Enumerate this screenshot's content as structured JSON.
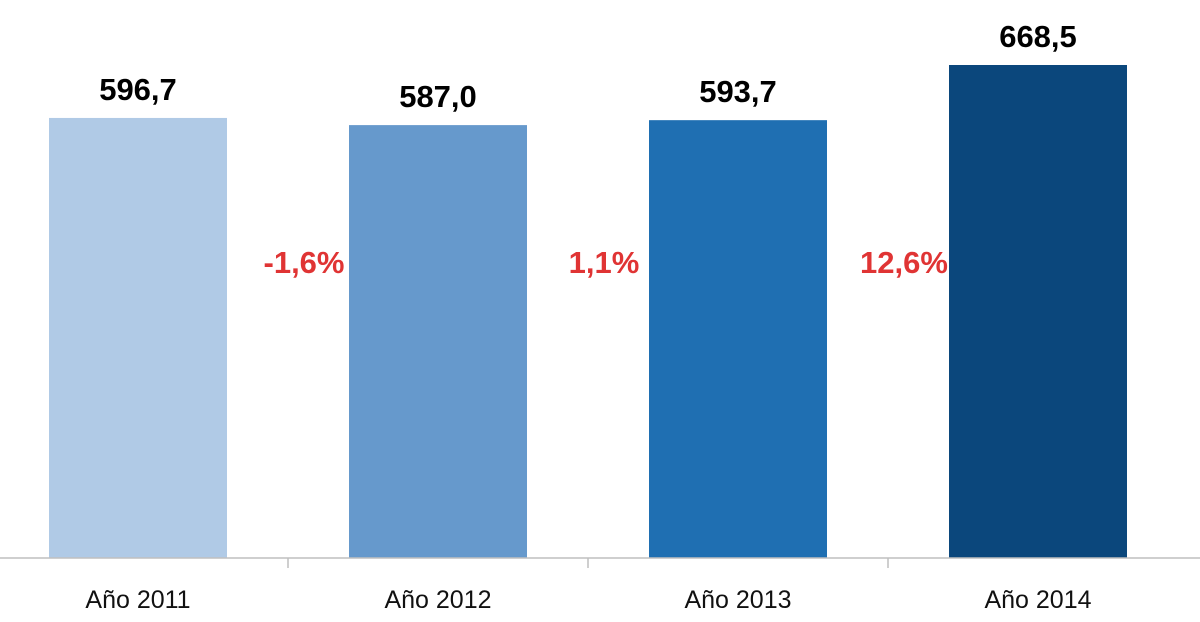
{
  "chart_data": {
    "type": "bar",
    "categories": [
      "Año 2011",
      "Año 2012",
      "Año 2013",
      "Año 2014"
    ],
    "values": [
      596.7,
      587.0,
      593.7,
      668.5
    ],
    "value_labels": [
      "596,7",
      "587,0",
      "593,7",
      "668,5"
    ],
    "bar_colors": [
      "#b0cae6",
      "#6699cc",
      "#1f6fb2",
      "#0b477c"
    ],
    "changes": [
      {
        "between": [
          "Año 2011",
          "Año 2012"
        ],
        "label": "-1,6%"
      },
      {
        "between": [
          "Año 2012",
          "Año 2013"
        ],
        "label": "1,1%"
      },
      {
        "between": [
          "Año 2013",
          "Año 2014"
        ],
        "label": "12,6%"
      }
    ],
    "change_color": "#e03434",
    "title": "",
    "xlabel": "",
    "ylabel": "",
    "ylim": [
      0,
      700
    ],
    "grid": false,
    "legend": "none"
  }
}
